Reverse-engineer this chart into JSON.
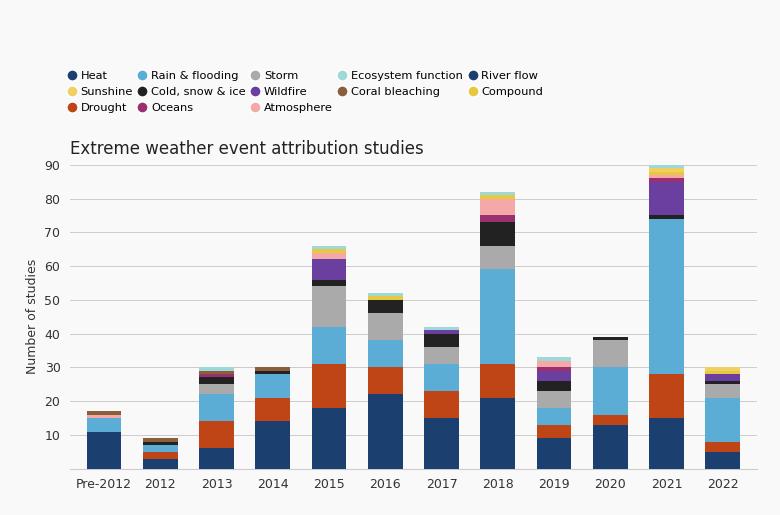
{
  "years": [
    "Pre-2012",
    "2012",
    "2013",
    "2014",
    "2015",
    "2016",
    "2017",
    "2018",
    "2019",
    "2020",
    "2021",
    "2022"
  ],
  "categories": [
    "Heat",
    "Drought",
    "Rain & flooding",
    "Storm",
    "Cold, snow & ice",
    "Wildfire",
    "Oceans",
    "Atmosphere",
    "Compound",
    "Sunshine",
    "Coral bleaching",
    "Ecosystem function",
    "River flow"
  ],
  "colors": {
    "Heat": "#1b3f6e",
    "Rain & flooding": "#5badd6",
    "Drought": "#bf4516",
    "Storm": "#aaaaaa",
    "Cold, snow & ice": "#222222",
    "Wildfire": "#6b3fa0",
    "Oceans": "#9b3070",
    "Atmosphere": "#f5a8a8",
    "River flow": "#1c3f6e",
    "Compound": "#e8c840",
    "Sunshine": "#f0d060",
    "Coral bleaching": "#8b5e3c",
    "Ecosystem function": "#9fd8d8"
  },
  "data": {
    "Heat": [
      11,
      3,
      6,
      14,
      18,
      22,
      15,
      21,
      9,
      13,
      15,
      5
    ],
    "Drought": [
      0,
      2,
      8,
      7,
      13,
      8,
      8,
      10,
      4,
      3,
      13,
      3
    ],
    "Rain & flooding": [
      4,
      2,
      8,
      7,
      11,
      8,
      8,
      28,
      5,
      14,
      46,
      13
    ],
    "Storm": [
      0,
      0,
      3,
      0,
      12,
      8,
      5,
      7,
      5,
      8,
      0,
      4
    ],
    "Cold, snow & ice": [
      0,
      1,
      2,
      1,
      2,
      4,
      4,
      7,
      3,
      1,
      1,
      1
    ],
    "Wildfire": [
      0,
      0,
      0,
      0,
      6,
      0,
      1,
      0,
      3,
      0,
      10,
      2
    ],
    "Oceans": [
      0,
      0,
      1,
      0,
      0,
      0,
      0,
      2,
      1,
      0,
      1,
      0
    ],
    "Atmosphere": [
      1,
      0,
      0,
      0,
      2,
      0,
      0,
      5,
      2,
      0,
      1,
      0
    ],
    "Compound": [
      0,
      0,
      0,
      0,
      1,
      1,
      0,
      1,
      0,
      0,
      1,
      1
    ],
    "Sunshine": [
      0,
      0,
      0,
      0,
      0,
      0,
      0,
      0,
      0,
      0,
      1,
      1
    ],
    "Coral bleaching": [
      1,
      1,
      1,
      1,
      0,
      0,
      0,
      0,
      0,
      0,
      0,
      0
    ],
    "Ecosystem function": [
      0,
      0,
      1,
      0,
      1,
      1,
      1,
      1,
      1,
      0,
      1,
      0
    ],
    "River flow": [
      0,
      0,
      0,
      0,
      0,
      0,
      0,
      0,
      0,
      0,
      0,
      0
    ]
  },
  "title": "Extreme weather event attribution studies",
  "ylabel": "Number of studies",
  "ylim": [
    0,
    90
  ],
  "yticks": [
    0,
    10,
    20,
    30,
    40,
    50,
    60,
    70,
    80,
    90
  ],
  "background_color": "#f9f9f9",
  "grid_color": "#cccccc",
  "legend_order_row1": [
    "Heat",
    "Sunshine",
    "Drought",
    "Rain & flooding",
    "Cold, snow & ice"
  ],
  "legend_order_row2": [
    "Oceans",
    "Storm",
    "Wildfire",
    "Atmosphere",
    "Ecosystem function"
  ],
  "legend_order_row3": [
    "Coral bleaching",
    "River flow",
    "Compound",
    "",
    ""
  ]
}
